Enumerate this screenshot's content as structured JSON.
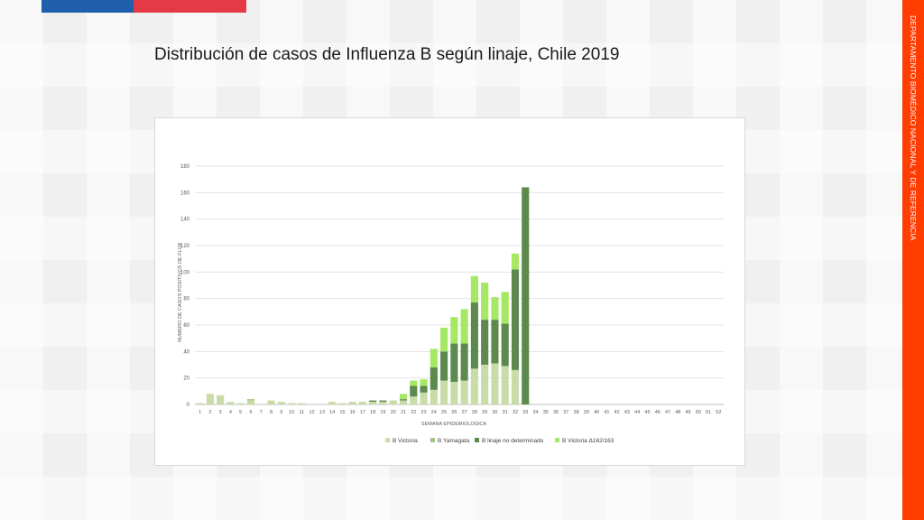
{
  "slide": {
    "title": "Distribución de casos de Influenza B según linaje, Chile 2019",
    "side_label": "DEPARTAMENTO BIOMÉDICO NACIONAL Y DE REFERENCIA"
  },
  "colors": {
    "flag_blue": "#1f5fab",
    "flag_red": "#e63946",
    "side_bar": "#ff3d00"
  },
  "chart_data": {
    "type": "bar",
    "stacked": true,
    "xlabel": "SEMANA EPIDEMIOLOGICA",
    "ylabel": "NUMERO DE CASOS POSITIVOS DE FLUB",
    "ylim": [
      0,
      180
    ],
    "yticks": [
      0,
      20,
      40,
      60,
      80,
      100,
      120,
      140,
      160,
      180
    ],
    "grid": true,
    "legend_position": "bottom",
    "categories": [
      "1",
      "2",
      "3",
      "4",
      "5",
      "6",
      "7",
      "8",
      "9",
      "10",
      "11",
      "12",
      "13",
      "14",
      "15",
      "16",
      "17",
      "18",
      "19",
      "20",
      "21",
      "22",
      "23",
      "24",
      "25",
      "26",
      "27",
      "28",
      "29",
      "30",
      "31",
      "32",
      "33",
      "34",
      "35",
      "36",
      "37",
      "38",
      "39",
      "40",
      "41",
      "42",
      "43",
      "44",
      "45",
      "46",
      "47",
      "48",
      "49",
      "50",
      "51",
      "52"
    ],
    "series": [
      {
        "name": "B Victoria",
        "color": "#c9dca8",
        "values": [
          1,
          8,
          7,
          2,
          1,
          3,
          0,
          3,
          2,
          1,
          1,
          0,
          0,
          2,
          1,
          2,
          2,
          2,
          2,
          3,
          3,
          6,
          9,
          11,
          18,
          17,
          18,
          27,
          30,
          31,
          29,
          26,
          0,
          0,
          0,
          0,
          0,
          0,
          0,
          0,
          0,
          0,
          0,
          0,
          0,
          0,
          0,
          0,
          0,
          0,
          0,
          0
        ]
      },
      {
        "name": "B Yamagata",
        "color": "#a3c585",
        "values": [
          0,
          0,
          0,
          0,
          0,
          1,
          0,
          0,
          0,
          0,
          0,
          0,
          0,
          0,
          0,
          0,
          0,
          0,
          0,
          0,
          0,
          0,
          0,
          0,
          0,
          0,
          0,
          0,
          0,
          0,
          0,
          0,
          0,
          0,
          0,
          0,
          0,
          0,
          0,
          0,
          0,
          0,
          0,
          0,
          0,
          0,
          0,
          0,
          0,
          0,
          0,
          0
        ]
      },
      {
        "name": "B linaje no determinado",
        "color": "#5c8a4e",
        "values": [
          0,
          0,
          0,
          0,
          0,
          0,
          0,
          0,
          0,
          0,
          0,
          0,
          0,
          0,
          0,
          0,
          0,
          1,
          1,
          0,
          1,
          8,
          5,
          17,
          22,
          29,
          28,
          50,
          34,
          33,
          32,
          76,
          164,
          0,
          0,
          0,
          0,
          0,
          0,
          0,
          0,
          0,
          0,
          0,
          0,
          0,
          0,
          0,
          0,
          0,
          0,
          0
        ]
      },
      {
        "name": "B Victoria Δ162/163",
        "color": "#a5e863",
        "values": [
          0,
          0,
          0,
          0,
          0,
          0,
          0,
          0,
          0,
          0,
          0,
          0,
          0,
          0,
          0,
          0,
          0,
          0,
          0,
          0,
          4,
          4,
          5,
          14,
          18,
          20,
          26,
          20,
          28,
          17,
          24,
          12,
          0,
          0,
          0,
          0,
          0,
          0,
          0,
          0,
          0,
          0,
          0,
          0,
          0,
          0,
          0,
          0,
          0,
          0,
          0,
          0
        ]
      }
    ]
  }
}
